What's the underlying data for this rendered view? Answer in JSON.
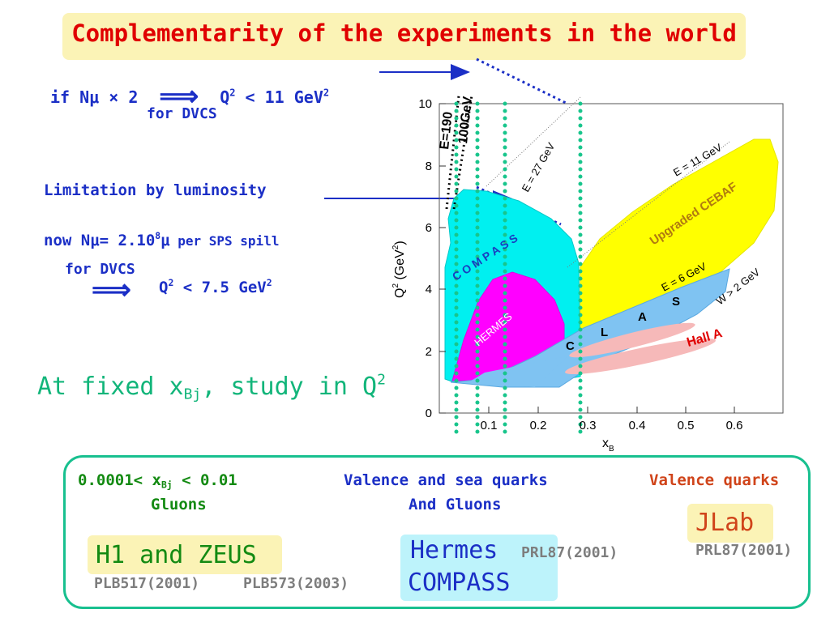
{
  "header": {
    "title": "Complementarity of the experiments in the world"
  },
  "left": {
    "line1_prefix": "if Nμ × 2",
    "arrow": "⟹",
    "line1_q": "Q",
    "line1_exp": "2",
    "line1_rest": " < 11 GeV",
    "line1_exp2": "2",
    "line1_sub": "for DVCS",
    "limitation": "Limitation by luminosity",
    "now_prefix": "now Nμ= 2.10",
    "now_exp": "8",
    "now_mu": "μ",
    "now_suffix": " per SPS spill",
    "for_dvcs2": "for DVCS",
    "q75_q": "Q",
    "q75_exp": "2",
    "q75_rest": " < 7.5 GeV",
    "q75_exp2": "2",
    "study_prefix": "At fixed x",
    "study_sub": "Bj",
    "study_mid": ", study in Q",
    "study_exp": "2"
  },
  "chart": {
    "ylabel_q": "Q",
    "ylabel_exp": "2",
    "ylabel_unit": " (GeV",
    "ylabel_exp2": "2",
    "ylabel_end": ")",
    "xlabel": "x",
    "xlabel_sub": "B",
    "y_ticks": [
      "0",
      "2",
      "4",
      "6",
      "8",
      "10"
    ],
    "x_ticks": [
      "0.1",
      "0.2",
      "0.3",
      "0.4",
      "0.5",
      "0.6"
    ],
    "labels": {
      "e190": "E=190",
      "e100": "100GeV",
      "e27": "E = 27 GeV",
      "e11": "E = 11 GeV",
      "e6": "E = 6 GeV",
      "w2": "W > 2 GeV",
      "cebaf": "Upgraded CEBAF",
      "compass": "C O M P A S S",
      "hermes": "HERMES",
      "clas_c": "C",
      "clas_l": "L",
      "clas_a": "A",
      "clas_s": "S",
      "halla": "Hall A"
    },
    "colors": {
      "compass": "#00f0f0",
      "hermes": "#ff00ff",
      "cebaf": "#ffff00",
      "clas": "#7fc3f2",
      "halla": "#f6b9b9",
      "dots": "#18c58c",
      "arrow": "#1b2fc6"
    }
  },
  "chart_data": {
    "type": "area",
    "xlabel": "x_B",
    "ylabel": "Q^2 (GeV^2)",
    "xlim": [
      0,
      0.7
    ],
    "ylim": [
      0,
      10
    ],
    "x_ticks": [
      0.1,
      0.2,
      0.3,
      0.4,
      0.5,
      0.6
    ],
    "y_ticks": [
      0,
      2,
      4,
      6,
      8,
      10
    ],
    "series": [
      {
        "name": "COMPASS",
        "x": [
          0.01,
          0.03,
          0.05,
          0.08,
          0.15,
          0.25,
          0.28,
          0.28,
          0.22,
          0.1,
          0.02
        ],
        "y": [
          1,
          3.5,
          6.5,
          7.2,
          6.8,
          6.0,
          5.0,
          1.0,
          1.0,
          1.0,
          1.0
        ]
      },
      {
        "name": "HERMES",
        "x": [
          0.02,
          0.05,
          0.1,
          0.15,
          0.2,
          0.25,
          0.25,
          0.18,
          0.1,
          0.03
        ],
        "y": [
          1,
          3,
          4.5,
          4.6,
          4.2,
          3.5,
          1.3,
          1.0,
          1.0,
          1.0
        ]
      },
      {
        "name": "Upgraded CEBAF",
        "x": [
          0.28,
          0.32,
          0.4,
          0.5,
          0.6,
          0.68,
          0.65,
          0.55,
          0.45,
          0.35,
          0.28
        ],
        "y": [
          1.5,
          5.5,
          6.5,
          7.5,
          8.5,
          8.8,
          7.0,
          4.5,
          3.2,
          2.2,
          1.5
        ]
      },
      {
        "name": "CLAS",
        "x": [
          0.1,
          0.2,
          0.3,
          0.45,
          0.58,
          0.58,
          0.45,
          0.25,
          0.12
        ],
        "y": [
          1,
          1.4,
          2.0,
          2.8,
          4.6,
          3.2,
          2.4,
          1.0,
          1.0
        ]
      },
      {
        "name": "Hall A",
        "x": [
          0.33,
          0.4,
          0.5,
          0.56
        ],
        "y": [
          2.2,
          2.8,
          2.5,
          2.2
        ]
      }
    ],
    "vertical_markers_x": [
      0.0001,
      0.05,
      0.09,
      0.15,
      0.28
    ]
  },
  "bottom": {
    "range_prefix": "0.0001< x",
    "range_sub": "Bj",
    "range_suffix": " < 0.01",
    "gluons": "Gluons",
    "valence_sea": "Valence and sea quarks",
    "and_gluons": "And Gluons",
    "valence_quarks": "Valence quarks",
    "h1_zeus": "H1 and ZEUS",
    "plb517": "PLB517(2001)",
    "plb573": "PLB573(2003)",
    "hermes": "Hermes",
    "compass": "COMPASS",
    "prl_mid": "PRL87(2001)",
    "jlab": "JLab",
    "prl_right": "PRL87(2001)"
  }
}
